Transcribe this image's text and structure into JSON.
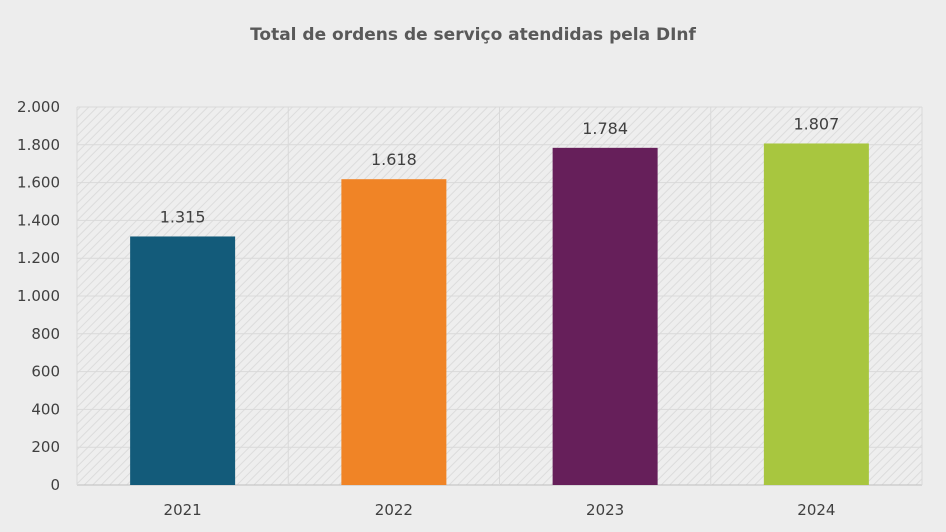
{
  "chart_data": {
    "type": "bar",
    "title": "Total de ordens de serviço atendidas pela DInf",
    "categories": [
      "2021",
      "2022",
      "2023",
      "2024"
    ],
    "values": [
      1315,
      1618,
      1784,
      1807
    ],
    "data_labels": [
      "1.315",
      "1.618",
      "1.784",
      "1.807"
    ],
    "bar_colors": [
      "#135b7a",
      "#f08426",
      "#661f5a",
      "#a8c63f"
    ],
    "ylim": [
      0,
      2000
    ],
    "yticks": [
      0,
      200,
      400,
      600,
      800,
      1000,
      1200,
      1400,
      1600,
      1800,
      2000
    ],
    "ytick_labels": [
      "0",
      "200",
      "400",
      "600",
      "800",
      "1.000",
      "1.200",
      "1.400",
      "1.600",
      "1.800",
      "2.000"
    ],
    "xlabel": "",
    "ylabel": "",
    "grid": true,
    "legend": "none"
  }
}
